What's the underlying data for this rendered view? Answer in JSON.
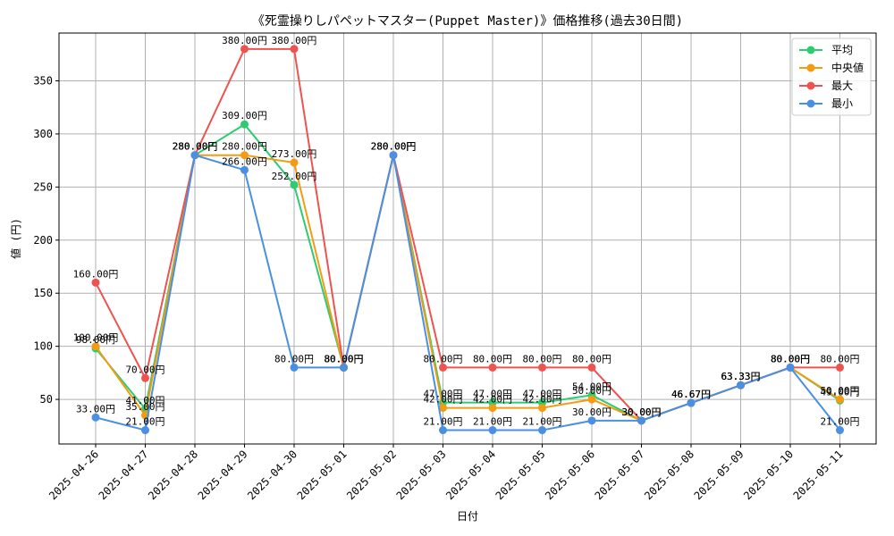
{
  "chart_data": {
    "type": "line",
    "title": "《死霊操りしパペットマスター(Puppet Master)》価格推移(過去30日間)",
    "xlabel": "日付",
    "ylabel": "値 (円)",
    "value_suffix": "円",
    "grid": true,
    "legend_position": "top-right",
    "ylim": [
      8,
      395
    ],
    "yticks": [
      50,
      100,
      150,
      200,
      250,
      300,
      350
    ],
    "categories": [
      "2025-04-26",
      "2025-04-27",
      "2025-04-28",
      "2025-04-29",
      "2025-04-30",
      "2025-05-01",
      "2025-05-02",
      "2025-05-03",
      "2025-05-04",
      "2025-05-05",
      "2025-05-06",
      "2025-05-07",
      "2025-05-08",
      "2025-05-09",
      "2025-05-10",
      "2025-05-11"
    ],
    "series": [
      {
        "name": "平均",
        "color": "#2ecc71",
        "values": [
          98.0,
          41.0,
          280.0,
          309.0,
          252.0,
          80.0,
          280.0,
          47.0,
          47.0,
          47.0,
          54.0,
          30.0,
          46.67,
          63.33,
          80.0,
          49.0
        ]
      },
      {
        "name": "中央値",
        "color": "#f39c12",
        "values": [
          100.0,
          35.0,
          280.0,
          280.0,
          273.0,
          80.0,
          280.0,
          42.0,
          42.0,
          42.0,
          50.0,
          30.0,
          46.67,
          63.33,
          80.0,
          50.0
        ]
      },
      {
        "name": "最大",
        "color": "#ef5350",
        "values": [
          160.0,
          70.0,
          280.0,
          380.0,
          380.0,
          80.0,
          280.0,
          80.0,
          80.0,
          80.0,
          80.0,
          30.0,
          46.67,
          63.33,
          80.0,
          80.0
        ]
      },
      {
        "name": "最小",
        "color": "#4a90e2",
        "values": [
          33.0,
          21.0,
          280.0,
          266.0,
          80.0,
          80.0,
          280.0,
          21.0,
          21.0,
          21.0,
          30.0,
          30.0,
          46.67,
          63.33,
          80.0,
          21.0
        ]
      }
    ]
  }
}
